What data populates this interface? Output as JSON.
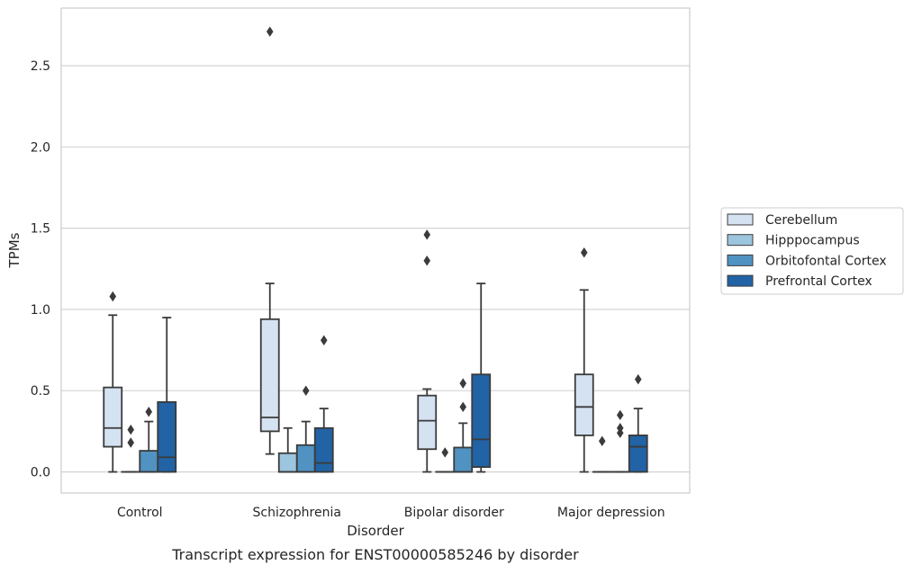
{
  "chart_data": {
    "type": "box",
    "title": "",
    "caption": "Transcript expression for ENST00000585246 by disorder",
    "xlabel": "Disorder",
    "ylabel": "TPMs",
    "ylim": [
      -0.13,
      2.855
    ],
    "yticks": [
      "0.0",
      "0.5",
      "1.0",
      "1.5",
      "2.0",
      "2.5"
    ],
    "ytick_values": [
      0,
      0.5,
      1.0,
      1.5,
      2.0,
      2.5
    ],
    "grid": "horizontal",
    "legend_placement": "right",
    "categories": [
      "Control",
      "Schizophrenia",
      "Bipolar disorder",
      "Major depression"
    ],
    "series": [
      {
        "name": "Cerebellum",
        "color": "#d4e2f1",
        "boxes": [
          {
            "min": 0.0,
            "q1": 0.155,
            "median": 0.27,
            "q3": 0.52,
            "max": 0.965,
            "outliers": [
              1.08
            ]
          },
          {
            "min": 0.11,
            "q1": 0.25,
            "median": 0.335,
            "q3": 0.94,
            "max": 1.16,
            "outliers": [
              2.71
            ]
          },
          {
            "min": 0.0,
            "q1": 0.14,
            "median": 0.315,
            "q3": 0.47,
            "max": 0.51,
            "outliers": [
              1.3,
              1.46
            ]
          },
          {
            "min": 0.0,
            "q1": 0.225,
            "median": 0.4,
            "q3": 0.6,
            "max": 1.12,
            "outliers": [
              1.35
            ]
          }
        ]
      },
      {
        "name": "Hipppocampus",
        "color": "#9cc5de",
        "boxes": [
          {
            "min": 0.0,
            "q1": 0.0,
            "median": 0.0,
            "q3": 0.0,
            "max": 0.0,
            "outliers": [
              0.18,
              0.26
            ]
          },
          {
            "min": 0.0,
            "q1": 0.0,
            "median": 0.0,
            "q3": 0.115,
            "max": 0.27,
            "outliers": []
          },
          {
            "min": 0.0,
            "q1": 0.0,
            "median": 0.0,
            "q3": 0.0,
            "max": 0.0,
            "outliers": [
              0.12
            ]
          },
          {
            "min": 0.0,
            "q1": 0.0,
            "median": 0.0,
            "q3": 0.0,
            "max": 0.0,
            "outliers": [
              0.19
            ]
          }
        ]
      },
      {
        "name": "Orbitofontal Cortex",
        "color": "#5092c2",
        "boxes": [
          {
            "min": 0.0,
            "q1": 0.0,
            "median": 0.0,
            "q3": 0.13,
            "max": 0.31,
            "outliers": [
              0.37
            ]
          },
          {
            "min": 0.0,
            "q1": 0.0,
            "median": 0.0,
            "q3": 0.165,
            "max": 0.31,
            "outliers": [
              0.5
            ]
          },
          {
            "min": 0.0,
            "q1": 0.0,
            "median": 0.0,
            "q3": 0.15,
            "max": 0.3,
            "outliers": [
              0.4,
              0.545
            ]
          },
          {
            "min": 0.0,
            "q1": 0.0,
            "median": 0.0,
            "q3": 0.0,
            "max": 0.0,
            "outliers": [
              0.24,
              0.27,
              0.35
            ]
          }
        ]
      },
      {
        "name": "Prefrontal Cortex",
        "color": "#2163a5",
        "boxes": [
          {
            "min": 0.0,
            "q1": 0.0,
            "median": 0.09,
            "q3": 0.43,
            "max": 0.95,
            "outliers": []
          },
          {
            "min": 0.0,
            "q1": 0.0,
            "median": 0.055,
            "q3": 0.27,
            "max": 0.39,
            "outliers": [
              0.81
            ]
          },
          {
            "min": 0.0,
            "q1": 0.03,
            "median": 0.2,
            "q3": 0.6,
            "max": 1.16,
            "outliers": []
          },
          {
            "min": 0.0,
            "q1": 0.0,
            "median": 0.155,
            "q3": 0.225,
            "max": 0.39,
            "outliers": [
              0.57
            ]
          }
        ]
      }
    ]
  }
}
